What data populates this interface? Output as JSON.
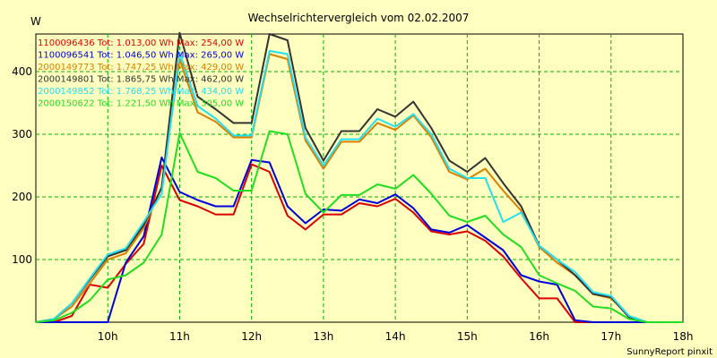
{
  "chart_data": {
    "type": "line",
    "title": "Wechselrichtervergleich vom 02.02.2007",
    "ylabel": "W",
    "xlabel": "",
    "credit": "SunnyReport pinxit",
    "ylim": [
      0,
      460
    ],
    "xlim": [
      9.0,
      18.0
    ],
    "x_ticks": [
      10,
      11,
      12,
      13,
      14,
      15,
      16,
      17,
      18
    ],
    "x_tick_labels": [
      "10h",
      "11h",
      "12h",
      "13h",
      "14h",
      "15h",
      "16h",
      "17h",
      "18h"
    ],
    "y_ticks": [
      100,
      200,
      300,
      400
    ],
    "y_tick_labels": [
      "100",
      "200",
      "300",
      "400"
    ],
    "grid": true,
    "legend_position": "top-left",
    "x": [
      9.0,
      9.25,
      9.5,
      9.75,
      10.0,
      10.25,
      10.5,
      10.75,
      11.0,
      11.25,
      11.5,
      11.75,
      12.0,
      12.25,
      12.5,
      12.75,
      13.0,
      13.25,
      13.5,
      13.75,
      14.0,
      14.25,
      14.5,
      14.75,
      15.0,
      15.25,
      15.5,
      15.75,
      16.0,
      16.25,
      16.5,
      16.75,
      17.0,
      17.25,
      17.5,
      17.75,
      18.0
    ],
    "series": [
      {
        "name": "1100096436",
        "legend": "1100096436 Tot: 1.013,00 Wh Max: 254,00 W",
        "color": "#dd0000",
        "values": [
          0,
          0,
          10,
          60,
          55,
          93,
          125,
          250,
          195,
          185,
          172,
          172,
          252,
          240,
          170,
          148,
          172,
          172,
          190,
          185,
          197,
          175,
          145,
          140,
          145,
          130,
          105,
          70,
          38,
          38,
          0,
          0,
          0,
          0,
          0,
          0,
          0
        ]
      },
      {
        "name": "1100096541",
        "legend": "1100096541 Tot: 1.046,50 Wh Max: 265,00 W",
        "color": "#0000dd",
        "values": [
          0,
          0,
          0,
          0,
          0,
          95,
          137,
          263,
          208,
          195,
          185,
          185,
          259,
          255,
          185,
          158,
          180,
          178,
          196,
          190,
          204,
          182,
          148,
          143,
          155,
          135,
          115,
          75,
          65,
          60,
          3,
          0,
          0,
          0,
          0,
          0,
          0
        ]
      },
      {
        "name": "2000149773",
        "legend": "2000149773 Tot: 1.747,25 Wh Max: 429,00 W",
        "color": "#d98000",
        "values": [
          0,
          5,
          25,
          62,
          100,
          110,
          150,
          215,
          420,
          335,
          320,
          295,
          295,
          428,
          420,
          290,
          245,
          288,
          288,
          318,
          307,
          330,
          295,
          240,
          228,
          245,
          210,
          178,
          120,
          95,
          75,
          45,
          38,
          10,
          0,
          0,
          0
        ]
      },
      {
        "name": "2000149801",
        "legend": "2000149801 Tot: 1.865,75 Wh Max: 462,00 W",
        "color": "#333333",
        "values": [
          0,
          5,
          30,
          68,
          105,
          115,
          155,
          215,
          462,
          360,
          340,
          318,
          318,
          460,
          450,
          310,
          258,
          305,
          305,
          340,
          328,
          352,
          310,
          258,
          240,
          262,
          222,
          185,
          122,
          100,
          75,
          45,
          40,
          8,
          0,
          0,
          0
        ]
      },
      {
        "name": "2000149852",
        "legend": "2000149852 Tot: 1.768,25 Wh Max: 434,00 W",
        "color": "#22e0f0",
        "values": [
          0,
          5,
          30,
          70,
          108,
          118,
          160,
          205,
          430,
          345,
          325,
          298,
          298,
          433,
          428,
          295,
          250,
          292,
          292,
          325,
          312,
          332,
          300,
          245,
          230,
          230,
          160,
          175,
          122,
          100,
          80,
          48,
          42,
          10,
          0,
          0,
          0
        ]
      },
      {
        "name": "2000150622",
        "legend": "2000150622 Tot: 1.221,50 Wh Max: 305,00 W",
        "color": "#22dd22",
        "values": [
          0,
          3,
          15,
          35,
          68,
          75,
          95,
          140,
          302,
          240,
          230,
          210,
          210,
          305,
          300,
          205,
          175,
          203,
          203,
          220,
          213,
          235,
          205,
          170,
          160,
          170,
          140,
          120,
          75,
          62,
          50,
          25,
          22,
          5,
          0,
          0,
          0
        ]
      }
    ]
  }
}
